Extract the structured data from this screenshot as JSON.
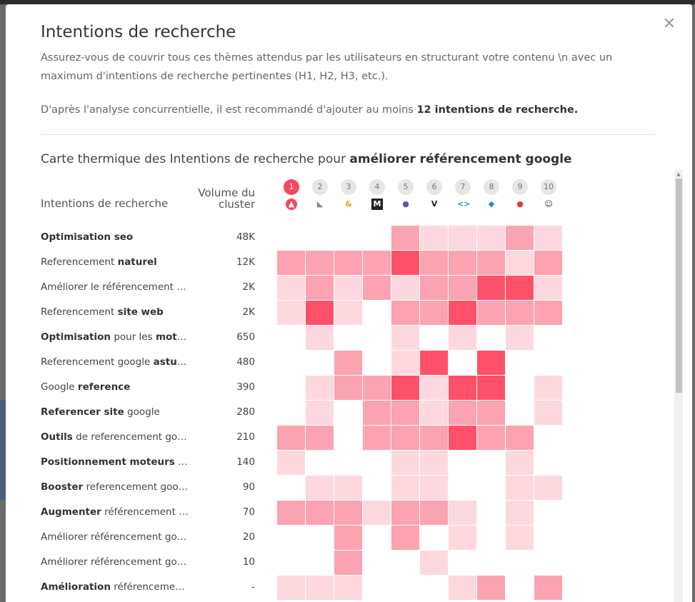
{
  "modal": {
    "title": "Intentions de recherche",
    "description": "Assurez-vous de couvrir tous ces thèmes attendus par les utilisateurs en structurant votre contenu \\n avec un maximum d'intentions de recherche pertinentes (H1, H2, H3, etc.).",
    "recommendation_prefix": "D'après l'analyse concurrentielle, il est recommandé d'ajouter au moins ",
    "recommendation_bold": "12 intentions de recherche.",
    "close_icon": "close-icon"
  },
  "heatmap": {
    "title_prefix": "Carte thermique des Intentions de recherche pour ",
    "keyword": "améliorer référencement google",
    "col_intents": "Intentions de recherche",
    "col_volume_line1": "Volume du",
    "col_volume_line2": "cluster",
    "competitors": [
      {
        "num": "1",
        "icon": "triangle-logo-icon",
        "active": true
      },
      {
        "num": "2",
        "icon": "leaf-logo-icon",
        "active": false
      },
      {
        "num": "3",
        "icon": "ampersand-logo-icon",
        "active": false
      },
      {
        "num": "4",
        "icon": "cm-logo-icon",
        "active": false
      },
      {
        "num": "5",
        "icon": "robot-logo-icon",
        "active": false
      },
      {
        "num": "6",
        "icon": "vinci-hego-logo-icon",
        "active": false
      },
      {
        "num": "7",
        "icon": "code-logo-icon",
        "active": false
      },
      {
        "num": "8",
        "icon": "diamond-logo-icon",
        "active": false
      },
      {
        "num": "9",
        "icon": "pepper-logo-icon",
        "active": false
      },
      {
        "num": "10",
        "icon": "smiley-logo-icon",
        "active": false
      }
    ],
    "level_colors": [
      "#ffffff",
      "#fdd9df",
      "#fba3b0",
      "#fe5169"
    ],
    "rows": [
      {
        "parts": [
          [
            "Optimisation seo",
            true
          ]
        ],
        "volume": "48K",
        "levels": [
          0,
          0,
          0,
          0,
          2,
          1,
          1,
          1,
          2,
          1
        ]
      },
      {
        "parts": [
          [
            "Referencement ",
            false
          ],
          [
            "naturel",
            true
          ]
        ],
        "volume": "12K",
        "levels": [
          2,
          2,
          2,
          2,
          3,
          2,
          2,
          2,
          1,
          2
        ]
      },
      {
        "parts": [
          [
            "Améliorer le référencement d…",
            false
          ]
        ],
        "volume": "2K",
        "levels": [
          1,
          2,
          1,
          2,
          1,
          2,
          2,
          3,
          3,
          1
        ]
      },
      {
        "parts": [
          [
            "Referencement ",
            false
          ],
          [
            "site web",
            true
          ]
        ],
        "volume": "2K",
        "levels": [
          1,
          3,
          1,
          0,
          2,
          2,
          3,
          2,
          2,
          2
        ]
      },
      {
        "parts": [
          [
            "Optimisation",
            true
          ],
          [
            " pour les ",
            false
          ],
          [
            "moteu…",
            true
          ]
        ],
        "volume": "650",
        "levels": [
          0,
          1,
          0,
          0,
          1,
          0,
          1,
          0,
          1,
          0
        ]
      },
      {
        "parts": [
          [
            "Referencement google ",
            false
          ],
          [
            "astuc…",
            true
          ]
        ],
        "volume": "480",
        "levels": [
          0,
          0,
          2,
          0,
          1,
          3,
          0,
          3,
          0,
          0
        ]
      },
      {
        "parts": [
          [
            "Google ",
            false
          ],
          [
            "reference",
            true
          ]
        ],
        "volume": "390",
        "levels": [
          0,
          1,
          2,
          2,
          3,
          1,
          3,
          3,
          0,
          1
        ]
      },
      {
        "parts": [
          [
            "Referencer site",
            true
          ],
          [
            " google",
            false
          ]
        ],
        "volume": "280",
        "levels": [
          0,
          1,
          0,
          2,
          2,
          1,
          2,
          2,
          0,
          1
        ]
      },
      {
        "parts": [
          [
            "Outils",
            true
          ],
          [
            " de referencement goo…",
            false
          ]
        ],
        "volume": "210",
        "levels": [
          2,
          2,
          0,
          2,
          2,
          2,
          3,
          2,
          2,
          0
        ]
      },
      {
        "parts": [
          [
            "Positionnement moteurs",
            true
          ],
          [
            " de …",
            false
          ]
        ],
        "volume": "140",
        "levels": [
          1,
          0,
          0,
          0,
          1,
          1,
          0,
          0,
          1,
          0
        ]
      },
      {
        "parts": [
          [
            "Booster",
            true
          ],
          [
            " referencement google",
            false
          ]
        ],
        "volume": "90",
        "levels": [
          0,
          1,
          1,
          0,
          1,
          1,
          0,
          0,
          1,
          1
        ]
      },
      {
        "parts": [
          [
            "Augmenter",
            true
          ],
          [
            " référencement g…",
            false
          ]
        ],
        "volume": "70",
        "levels": [
          2,
          2,
          2,
          1,
          2,
          2,
          1,
          0,
          1,
          0
        ]
      },
      {
        "parts": [
          [
            "Améliorer référencement goo…",
            false
          ]
        ],
        "volume": "20",
        "levels": [
          0,
          0,
          2,
          0,
          2,
          0,
          1,
          0,
          1,
          0
        ]
      },
      {
        "parts": [
          [
            "Améliorer référencement goo…",
            false
          ]
        ],
        "volume": "10",
        "levels": [
          0,
          0,
          2,
          0,
          0,
          1,
          0,
          0,
          0,
          0
        ]
      },
      {
        "parts": [
          [
            "Amélioration",
            true
          ],
          [
            " référencement …",
            false
          ]
        ],
        "volume": "-",
        "levels": [
          1,
          1,
          1,
          0,
          0,
          0,
          1,
          2,
          0,
          2
        ]
      }
    ]
  }
}
